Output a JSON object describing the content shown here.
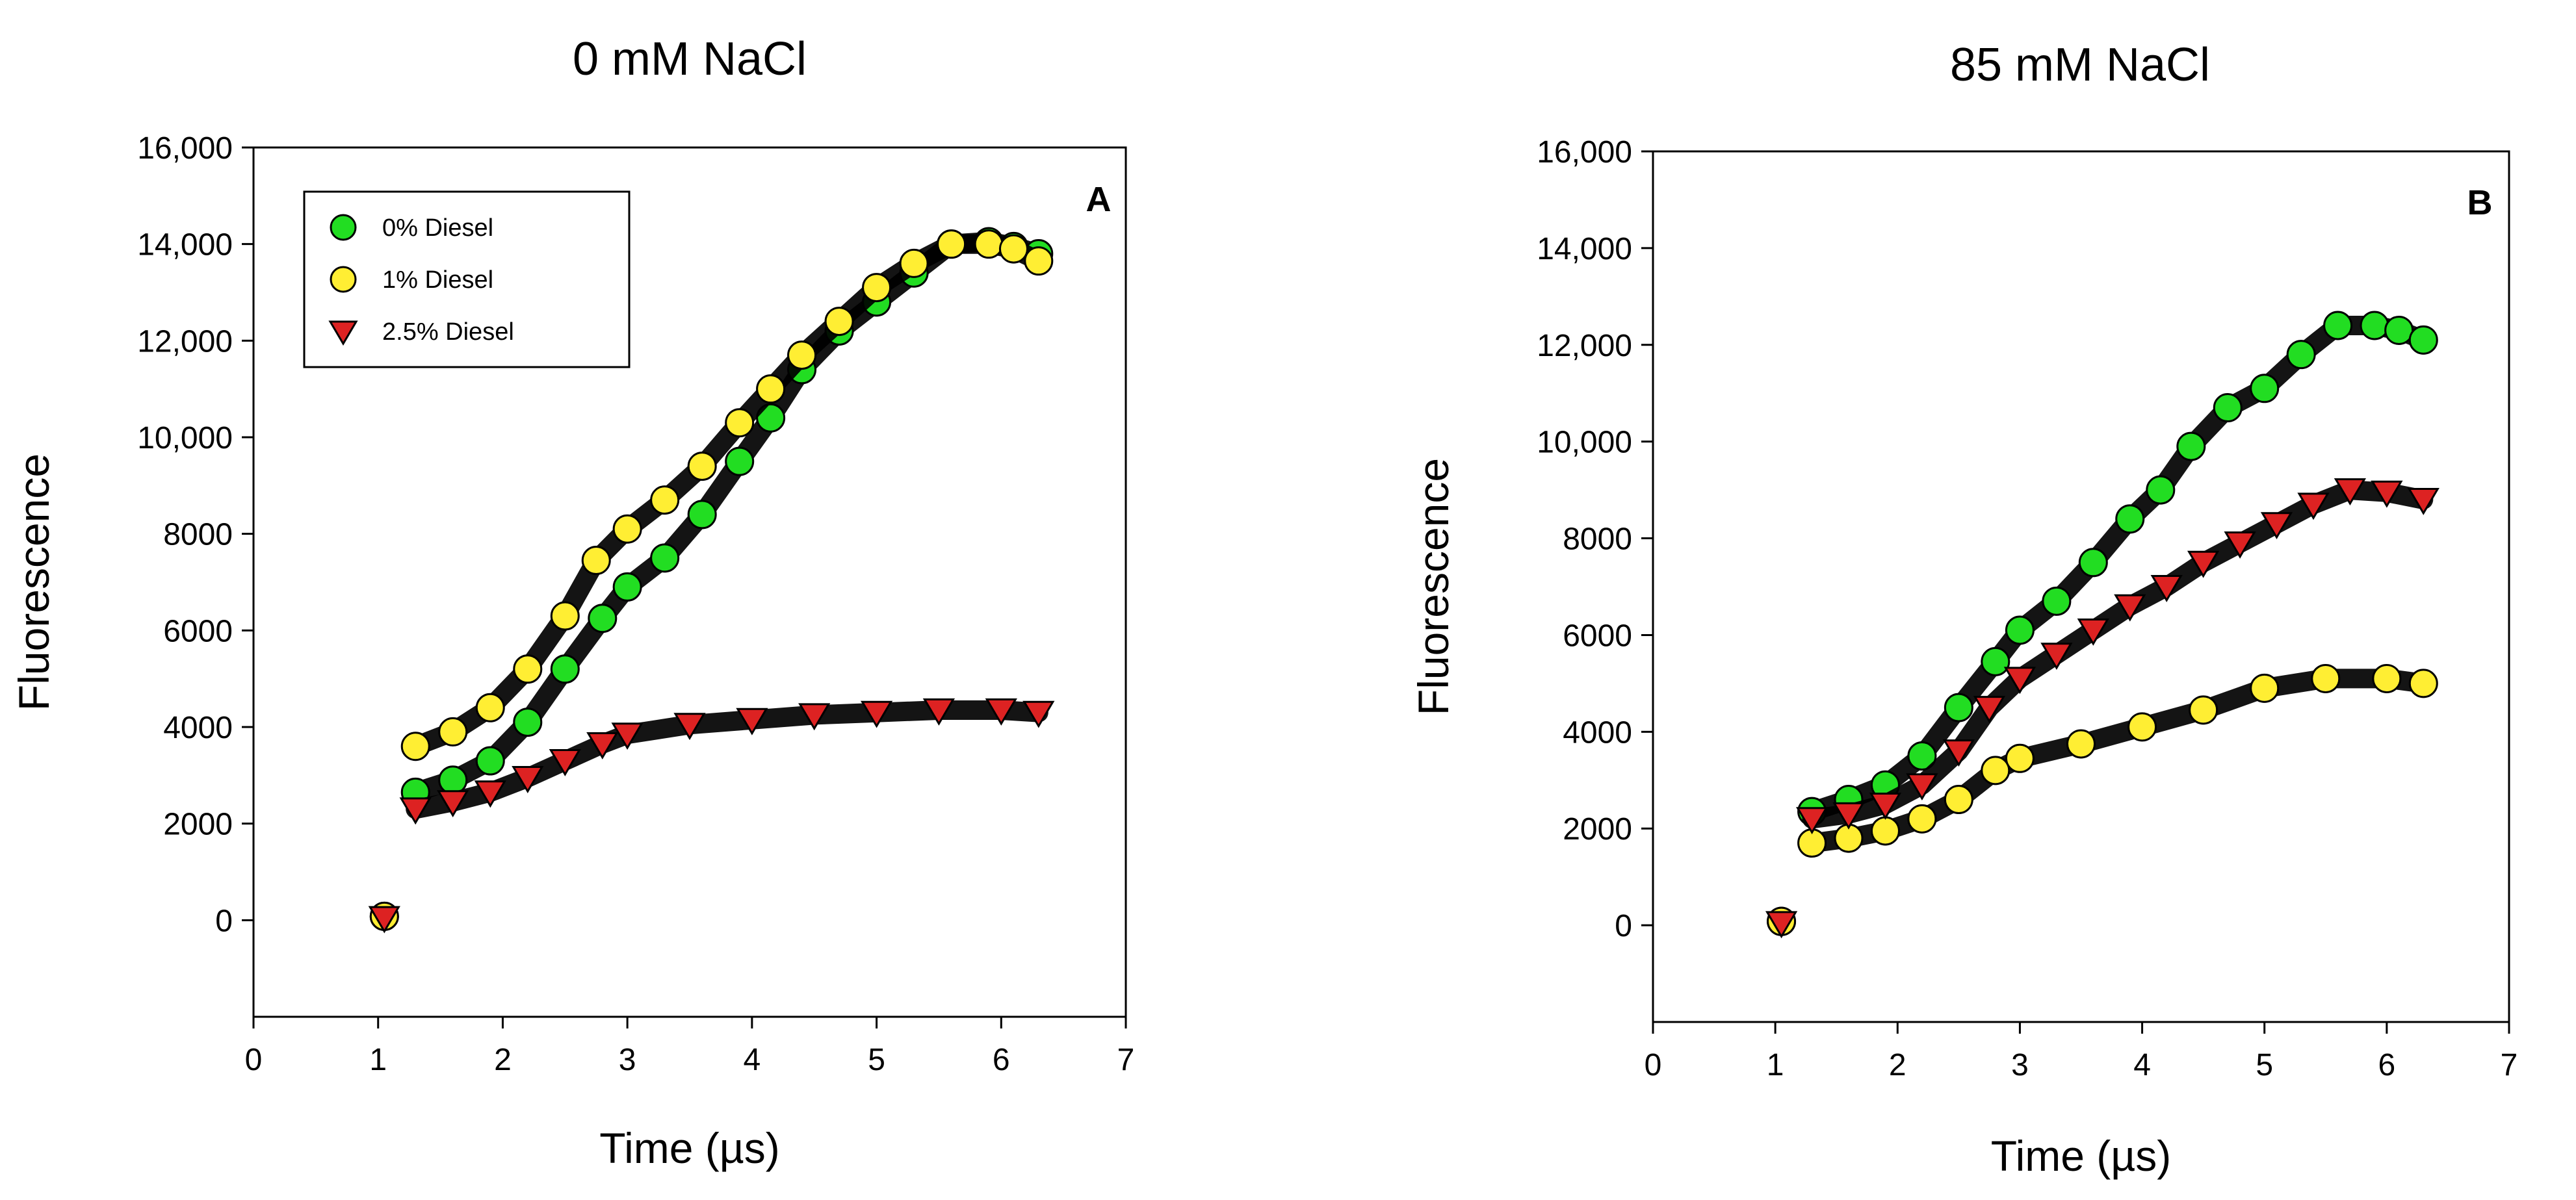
{
  "chart_data": [
    {
      "type": "scatter",
      "panel_letter": "A",
      "title": "0 mM NaCl",
      "xlabel": "Time (µs)",
      "ylabel": "Fluorescence",
      "xlim": [
        0,
        7
      ],
      "ylim": [
        -2000,
        16000
      ],
      "xticks": [
        0,
        1,
        2,
        3,
        4,
        5,
        6,
        7
      ],
      "xtick_labels": [
        "0",
        "1",
        "2",
        "3",
        "4",
        "5",
        "6",
        "7"
      ],
      "yticks": [
        0,
        2000,
        4000,
        6000,
        8000,
        10000,
        12000,
        14000,
        16000
      ],
      "ytick_labels": [
        "0",
        "2000",
        "4000",
        "6000",
        "8000",
        "10,000",
        "12,000",
        "14,000",
        "16,000"
      ],
      "legend": {
        "placement": "top-left",
        "entries": [
          "0% Diesel",
          "1% Diesel",
          "2.5% Diesel"
        ]
      },
      "series": [
        {
          "name": "0% Diesel",
          "color": "#22dd22",
          "marker": "circle",
          "x": [
            1.05,
            1.3,
            1.6,
            1.9,
            2.2,
            2.5,
            2.8,
            3.0,
            3.3,
            3.6,
            3.9,
            4.15,
            4.4,
            4.7,
            5.0,
            5.3,
            5.6,
            5.9,
            6.1,
            6.3
          ],
          "y": [
            80,
            2650,
            2900,
            3300,
            4100,
            5200,
            6250,
            6900,
            7500,
            8400,
            9500,
            10400,
            11400,
            12200,
            12800,
            13400,
            14000,
            14050,
            13950,
            13800
          ]
        },
        {
          "name": "1% Diesel",
          "color": "#ffee33",
          "marker": "circle",
          "x": [
            1.05,
            1.3,
            1.6,
            1.9,
            2.2,
            2.5,
            2.75,
            3.0,
            3.3,
            3.6,
            3.9,
            4.15,
            4.4,
            4.7,
            5.0,
            5.3,
            5.6,
            5.9,
            6.1,
            6.3
          ],
          "y": [
            80,
            3600,
            3900,
            4400,
            5200,
            6300,
            7450,
            8100,
            8700,
            9400,
            10300,
            11000,
            11700,
            12400,
            13100,
            13600,
            14000,
            14000,
            13900,
            13650
          ]
        },
        {
          "name": "2.5% Diesel",
          "color": "#dd2222",
          "marker": "triangle-down",
          "x": [
            1.05,
            1.3,
            1.6,
            1.9,
            2.2,
            2.5,
            2.8,
            3.0,
            3.5,
            4.0,
            4.5,
            5.0,
            5.5,
            6.0,
            6.3
          ],
          "y": [
            50,
            2300,
            2450,
            2650,
            2950,
            3300,
            3650,
            3850,
            4050,
            4150,
            4250,
            4300,
            4350,
            4350,
            4300
          ]
        }
      ]
    },
    {
      "type": "scatter",
      "panel_letter": "B",
      "title": "85 mM NaCl",
      "xlabel": "Time (µs)",
      "ylabel": "Fluorescence",
      "xlim": [
        0,
        7
      ],
      "ylim": [
        -2000,
        16000
      ],
      "xticks": [
        0,
        1,
        2,
        3,
        4,
        5,
        6,
        7
      ],
      "xtick_labels": [
        "0",
        "1",
        "2",
        "3",
        "4",
        "5",
        "6",
        "7"
      ],
      "yticks": [
        0,
        2000,
        4000,
        6000,
        8000,
        10000,
        12000,
        14000,
        16000
      ],
      "ytick_labels": [
        "0",
        "2000",
        "4000",
        "6000",
        "8000",
        "10,000",
        "12,000",
        "14,000",
        "16,000"
      ],
      "series": [
        {
          "name": "0% Diesel",
          "color": "#22dd22",
          "marker": "circle",
          "x": [
            1.05,
            1.3,
            1.6,
            1.9,
            2.2,
            2.5,
            2.8,
            3.0,
            3.3,
            3.6,
            3.9,
            4.15,
            4.4,
            4.7,
            5.0,
            5.3,
            5.6,
            5.9,
            6.1,
            6.3
          ],
          "y": [
            80,
            2350,
            2600,
            2900,
            3500,
            4500,
            5450,
            6100,
            6700,
            7500,
            8400,
            9000,
            9900,
            10700,
            11100,
            11800,
            12400,
            12400,
            12300,
            12100
          ]
        },
        {
          "name": "1% Diesel",
          "color": "#ffee33",
          "marker": "circle",
          "x": [
            1.05,
            1.3,
            1.6,
            1.9,
            2.2,
            2.5,
            2.8,
            3.0,
            3.5,
            4.0,
            4.5,
            5.0,
            5.5,
            6.0,
            6.3
          ],
          "y": [
            80,
            1700,
            1800,
            1950,
            2200,
            2600,
            3200,
            3450,
            3750,
            4100,
            4450,
            4900,
            5100,
            5100,
            5000
          ]
        },
        {
          "name": "2.5% Diesel",
          "color": "#dd2222",
          "marker": "triangle-down",
          "x": [
            1.05,
            1.3,
            1.6,
            1.9,
            2.2,
            2.5,
            2.75,
            3.0,
            3.3,
            3.6,
            3.9,
            4.2,
            4.5,
            4.8,
            5.1,
            5.4,
            5.7,
            6.0,
            6.3
          ],
          "y": [
            50,
            2200,
            2300,
            2500,
            2900,
            3600,
            4500,
            5100,
            5600,
            6100,
            6600,
            7000,
            7500,
            7900,
            8300,
            8700,
            9000,
            8950,
            8800
          ]
        }
      ]
    }
  ]
}
